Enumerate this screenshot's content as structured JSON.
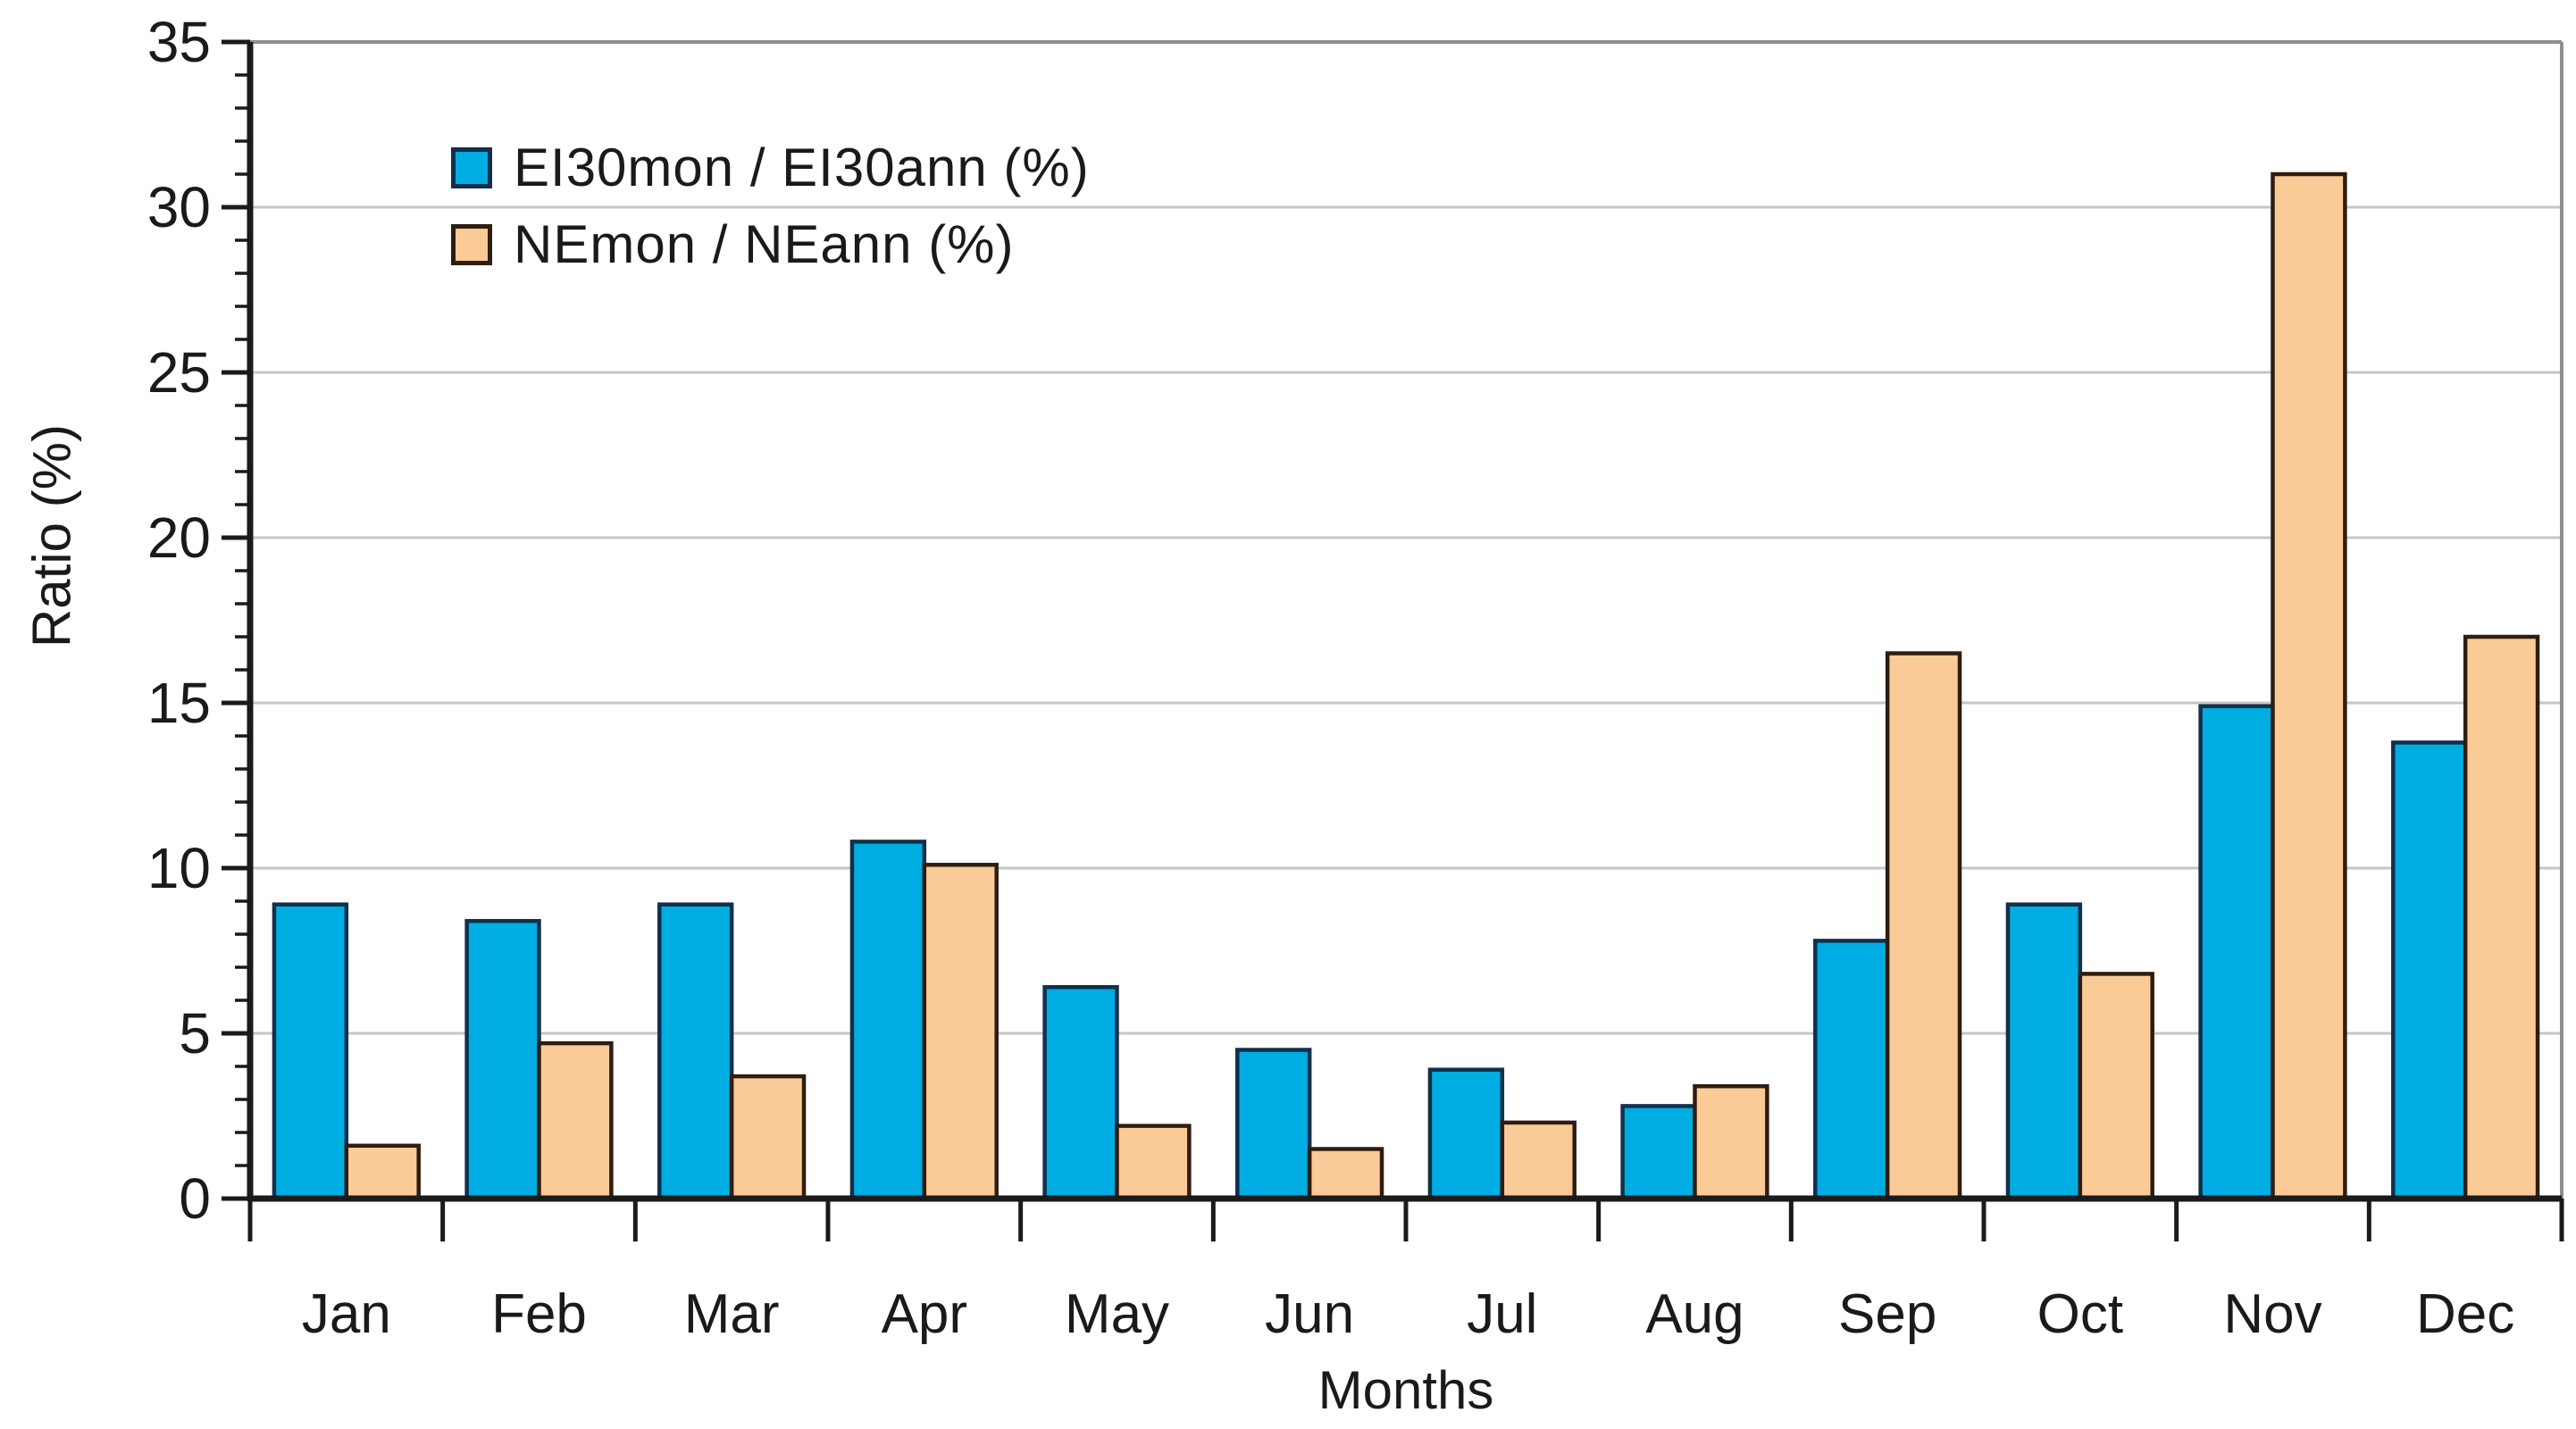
{
  "chart_data": {
    "type": "bar",
    "title": "",
    "xlabel": "Months",
    "ylabel": "Ratio (%)",
    "ylim": [
      0,
      35
    ],
    "yticks": [
      0,
      5,
      10,
      15,
      20,
      25,
      30,
      35
    ],
    "minor_tick_step": 1,
    "grid": true,
    "legend_position": "top-left-inside",
    "categories": [
      "Jan",
      "Feb",
      "Mar",
      "Apr",
      "May",
      "Jun",
      "Jul",
      "Aug",
      "Sep",
      "Oct",
      "Nov",
      "Dec"
    ],
    "series": [
      {
        "name": "EI30mon / EI30ann (%)",
        "color": "#00ADE2",
        "border": "#12304b",
        "values": [
          8.9,
          8.4,
          8.9,
          10.8,
          6.4,
          4.5,
          3.9,
          2.8,
          7.8,
          8.9,
          14.9,
          13.8
        ]
      },
      {
        "name": "NEmon / NEann (%)",
        "color": "#FACB97",
        "border": "#2e1d10",
        "values": [
          1.6,
          4.7,
          3.7,
          10.1,
          2.2,
          1.5,
          2.3,
          3.4,
          16.5,
          6.8,
          31.0,
          17.0
        ]
      }
    ]
  },
  "colors": {
    "gridline": "#c6c6c6",
    "frame": "#8f8f8f",
    "axis": "#1a1a1a",
    "tick": "#1a1a1a",
    "text": "#1a1a1a",
    "background": "#ffffff"
  }
}
